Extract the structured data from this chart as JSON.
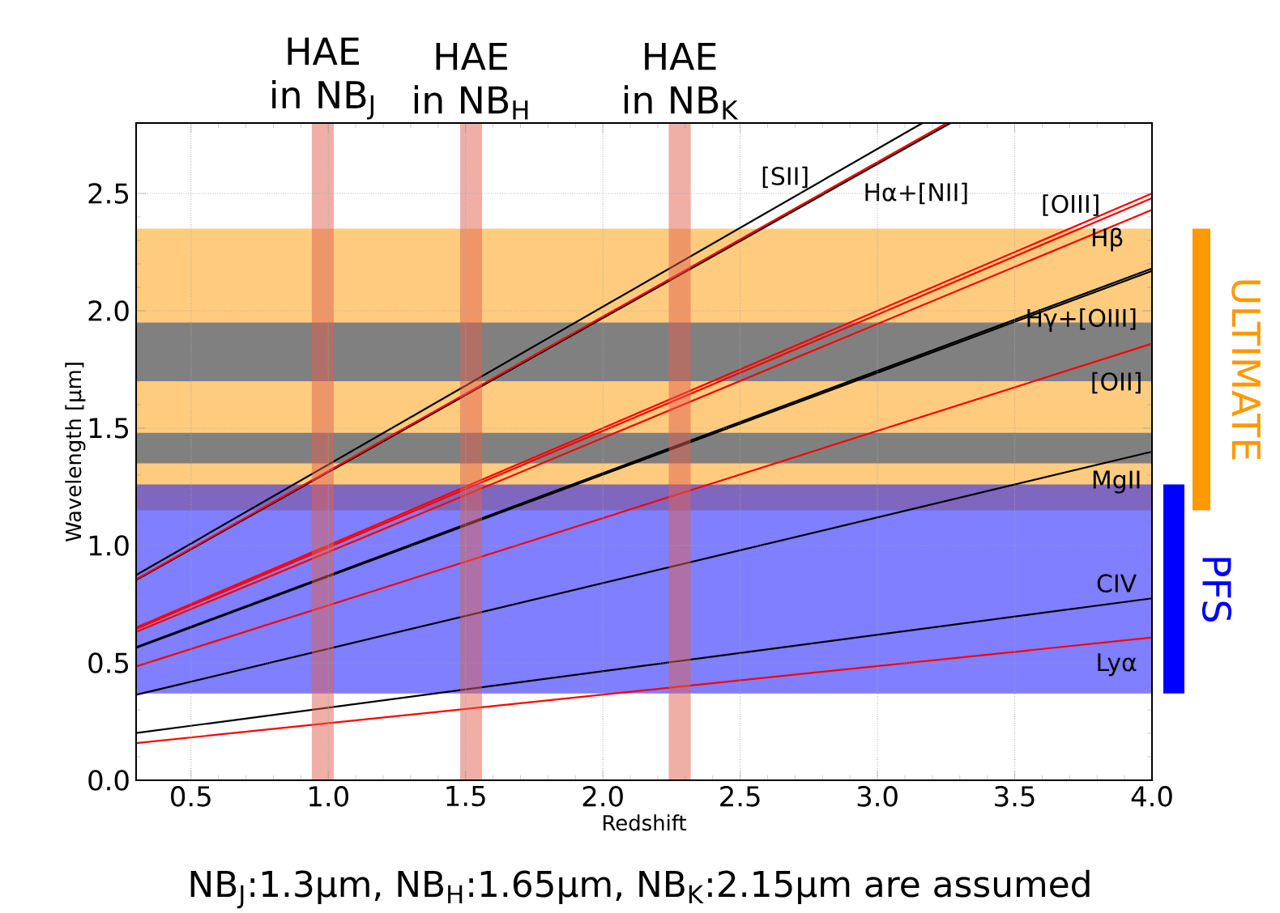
{
  "chart_data": {
    "type": "line",
    "xlabel": "Redshift",
    "ylabel": "Wavelength [μm]",
    "xlim": [
      0.3,
      4.0
    ],
    "ylim": [
      0.0,
      2.8
    ],
    "xticks": [
      0.5,
      {
        "value": 1,
        "label": "1.0"
      },
      1.5,
      {
        "value": 2,
        "label": "2.0"
      },
      2.5,
      {
        "value": 3,
        "label": "3.0"
      },
      3.5,
      {
        "value": 4,
        "label": "4.0"
      }
    ],
    "yticks": [
      {
        "value": 0,
        "label": "0.0"
      },
      0.5,
      {
        "value": 1,
        "label": "1.0"
      },
      1.5,
      {
        "value": 2,
        "label": "2.0"
      },
      2.5
    ],
    "grid": true,
    "series": [
      {
        "name": "[SII]",
        "color": "#000000",
        "x": [
          0.3,
          3.164
        ],
        "values": [
          0.874,
          2.8
        ]
      },
      {
        "name": "Hα+[NII]",
        "color": "#000000",
        "x": [
          0.3,
          3.266
        ],
        "values": [
          0.853,
          2.8
        ]
      },
      {
        "color": "#ff0000",
        "x": [
          0.3,
          3.253
        ],
        "values": [
          0.856,
          2.8
        ]
      },
      {
        "name": "[OIII]",
        "color": "#ff0000",
        "x": [
          0.3,
          4.0
        ],
        "values": [
          0.651,
          2.5
        ]
      },
      {
        "color": "#ff0000",
        "x": [
          0.3,
          4.0
        ],
        "values": [
          0.645,
          2.48
        ]
      },
      {
        "name": "Hβ",
        "color": "#ff0000",
        "x": [
          0.3,
          4.0
        ],
        "values": [
          0.632,
          2.43
        ]
      },
      {
        "name": "Hγ+[OIII]",
        "color": "#000000",
        "x": [
          0.3,
          4.0
        ],
        "values": [
          0.567,
          2.18
        ]
      },
      {
        "color": "#000000",
        "x": [
          0.3,
          4.0
        ],
        "values": [
          0.564,
          2.17
        ]
      },
      {
        "name": "[OII]",
        "color": "#ff0000",
        "x": [
          0.3,
          4.0
        ],
        "values": [
          0.485,
          1.86
        ]
      },
      {
        "name": "MgII",
        "color": "#000000",
        "x": [
          0.3,
          4.0
        ],
        "values": [
          0.364,
          1.4
        ]
      },
      {
        "name": "CIV",
        "color": "#000000",
        "x": [
          0.3,
          4.0
        ],
        "values": [
          0.201,
          0.775
        ]
      },
      {
        "name": "Lyα",
        "color": "#ff0000",
        "x": [
          0.3,
          4.0
        ],
        "values": [
          0.158,
          0.608
        ]
      }
    ],
    "bands": [
      {
        "axis": "y",
        "from": 1.15,
        "to": 2.35,
        "label": "ULTIMATE",
        "color": "#ff9900"
      },
      {
        "axis": "y",
        "from": 0.37,
        "to": 1.26,
        "label": "PFS",
        "color": "#0000ff"
      },
      {
        "axis": "y",
        "from": 1.7,
        "to": 1.95,
        "color": "#808080"
      },
      {
        "axis": "y",
        "from": 1.35,
        "to": 1.48,
        "color": "#808080"
      },
      {
        "axis": "x",
        "from": 0.94,
        "to": 1.02,
        "label": "HAE in NB$_{J}$",
        "color": "#e06050"
      },
      {
        "axis": "x",
        "from": 1.48,
        "to": 1.56,
        "label": "HAE in NB$_{H}$",
        "color": "#e06050"
      },
      {
        "axis": "x",
        "from": 2.24,
        "to": 2.32,
        "label": "HAE in NB$_{K}$",
        "color": "#e06050"
      }
    ],
    "annotations": [
      "NB$_{J}$:1.3μm, NB$_{H}$:1.65μm, NB$_{K}$:2.15μm are assumed"
    ]
  }
}
